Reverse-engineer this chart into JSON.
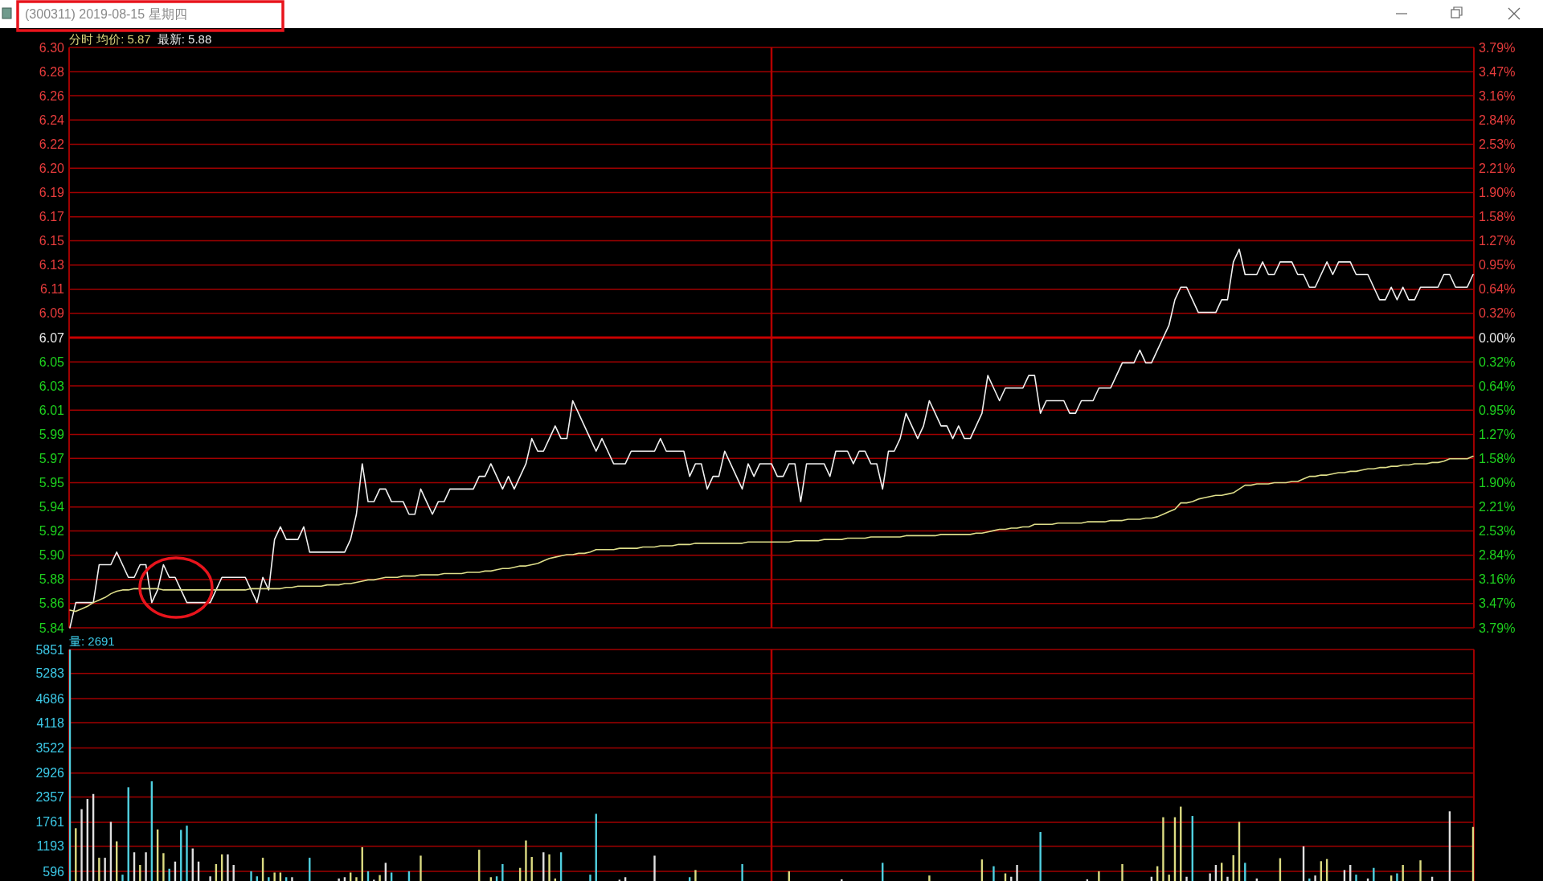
{
  "chart_data": [
    {
      "type": "line",
      "title": "(300311) 2019-08-15 星期四",
      "categories": [
        null,
        null,
        null,
        null,
        null,
        null,
        null,
        null,
        null,
        null,
        null,
        null,
        null,
        null,
        null,
        null,
        null,
        null,
        null,
        null,
        null,
        null,
        null,
        null,
        null,
        null,
        null,
        null,
        null,
        null,
        null,
        null,
        null,
        null,
        null,
        null,
        null,
        null,
        null,
        null,
        null,
        null,
        null,
        null,
        null,
        null,
        null,
        null,
        null,
        null,
        null,
        null,
        null,
        null,
        null,
        null,
        null,
        null,
        null,
        null,
        null,
        null,
        null,
        null,
        null,
        null,
        null,
        null,
        null,
        null,
        null,
        null,
        null,
        null,
        null,
        null,
        null,
        null,
        null,
        null,
        null,
        null,
        null,
        null,
        null,
        null,
        null,
        null,
        null,
        null,
        null,
        null,
        null,
        null,
        null,
        null,
        null,
        null,
        null,
        null,
        null,
        null,
        null,
        null,
        null,
        null,
        null,
        null,
        null,
        null,
        null,
        null,
        null,
        null,
        null,
        null,
        null,
        null,
        null,
        null,
        null,
        null,
        null,
        null,
        null,
        null,
        null,
        null,
        null,
        null,
        null,
        null,
        null,
        null,
        null,
        null,
        null,
        null,
        null,
        null,
        null,
        null,
        null,
        null,
        null,
        null,
        null,
        null,
        null,
        null,
        null,
        null,
        null,
        null,
        null,
        null,
        null,
        null,
        null,
        null,
        null,
        null,
        null,
        null,
        null,
        null,
        null,
        null,
        null,
        null,
        null,
        null,
        null,
        null,
        null,
        null,
        null,
        null,
        null,
        null,
        null,
        null,
        null,
        null,
        null,
        null,
        null,
        null,
        null,
        null,
        null,
        null,
        null,
        null,
        null,
        null,
        null,
        null,
        null,
        null,
        null,
        null,
        null,
        null,
        null,
        null,
        null,
        null,
        null,
        null,
        null,
        null,
        null,
        null,
        null,
        null,
        null,
        null,
        null,
        null,
        null,
        null,
        null,
        null,
        null,
        null,
        null,
        null,
        null,
        null,
        null,
        null,
        null,
        null,
        null,
        null,
        null,
        null,
        null,
        null,
        null
      ],
      "series": [
        {
          "color": "#f0f0f0",
          "values": [
            5.84,
            5.86,
            5.86,
            5.86,
            5.86,
            5.89,
            5.89,
            5.89,
            5.9,
            5.89,
            5.88,
            5.88,
            5.89,
            5.89,
            5.86,
            5.87,
            5.89,
            5.88,
            5.88,
            5.87,
            5.86,
            5.86,
            5.86,
            5.86,
            5.86,
            5.87,
            5.88,
            5.88,
            5.88,
            5.88,
            5.88,
            5.87,
            5.86,
            5.88,
            5.87,
            5.91,
            5.92,
            5.91,
            5.91,
            5.91,
            5.92,
            5.9,
            5.9,
            5.9,
            5.9,
            5.9,
            5.9,
            5.9,
            5.91,
            5.93,
            5.97,
            5.94,
            5.94,
            5.95,
            5.95,
            5.94,
            5.94,
            5.94,
            5.93,
            5.93,
            5.95,
            5.94,
            5.93,
            5.94,
            5.94,
            5.95,
            5.95,
            5.95,
            5.95,
            5.95,
            5.96,
            5.96,
            5.97,
            5.96,
            5.95,
            5.96,
            5.95,
            5.96,
            5.97,
            5.99,
            5.98,
            5.98,
            5.99,
            6.0,
            5.99,
            5.99,
            6.02,
            6.01,
            6.0,
            5.99,
            5.98,
            5.99,
            5.98,
            5.97,
            5.97,
            5.97,
            5.98,
            5.98,
            5.98,
            5.98,
            5.98,
            5.99,
            5.98,
            5.98,
            5.98,
            5.98,
            5.96,
            5.97,
            5.97,
            5.95,
            5.96,
            5.96,
            5.98,
            5.97,
            5.96,
            5.95,
            5.97,
            5.96,
            5.97,
            5.97,
            5.97,
            5.96,
            5.96,
            5.97,
            5.97,
            5.94,
            5.97,
            5.97,
            5.97,
            5.97,
            5.96,
            5.98,
            5.98,
            5.98,
            5.97,
            5.98,
            5.98,
            5.97,
            5.97,
            5.95,
            5.98,
            5.98,
            5.99,
            6.01,
            6.0,
            5.99,
            6.0,
            6.02,
            6.01,
            6.0,
            6.0,
            5.99,
            6.0,
            5.99,
            5.99,
            6.0,
            6.01,
            6.04,
            6.03,
            6.02,
            6.03,
            6.03,
            6.03,
            6.03,
            6.04,
            6.04,
            6.01,
            6.02,
            6.02,
            6.02,
            6.02,
            6.01,
            6.01,
            6.02,
            6.02,
            6.02,
            6.03,
            6.03,
            6.03,
            6.04,
            6.05,
            6.05,
            6.05,
            6.06,
            6.05,
            6.05,
            6.06,
            6.07,
            6.08,
            6.1,
            6.11,
            6.11,
            6.1,
            6.09,
            6.09,
            6.09,
            6.09,
            6.1,
            6.1,
            6.13,
            6.14,
            6.12,
            6.12,
            6.12,
            6.13,
            6.12,
            6.12,
            6.13,
            6.13,
            6.13,
            6.12,
            6.12,
            6.11,
            6.11,
            6.12,
            6.13,
            6.12,
            6.13,
            6.13,
            6.13,
            6.12,
            6.12,
            6.12,
            6.11,
            6.1,
            6.1,
            6.11,
            6.1,
            6.11,
            6.1,
            6.1,
            6.11,
            6.11,
            6.11,
            6.11,
            6.12,
            6.12,
            6.11,
            6.11,
            6.11,
            6.12
          ]
        },
        {
          "color": "#dede8a",
          "values": [
            5.854,
            5.853,
            5.855,
            5.857,
            5.86,
            5.862,
            5.864,
            5.867,
            5.869,
            5.87,
            5.87,
            5.871,
            5.871,
            5.871,
            5.871,
            5.871,
            5.87,
            5.87,
            5.87,
            5.87,
            5.87,
            5.87,
            5.87,
            5.87,
            5.87,
            5.87,
            5.87,
            5.87,
            5.87,
            5.87,
            5.87,
            5.871,
            5.871,
            5.871,
            5.871,
            5.871,
            5.871,
            5.872,
            5.872,
            5.873,
            5.873,
            5.873,
            5.873,
            5.873,
            5.874,
            5.874,
            5.874,
            5.875,
            5.875,
            5.876,
            5.877,
            5.878,
            5.878,
            5.879,
            5.88,
            5.88,
            5.88,
            5.881,
            5.881,
            5.881,
            5.882,
            5.882,
            5.882,
            5.882,
            5.883,
            5.883,
            5.883,
            5.883,
            5.884,
            5.884,
            5.884,
            5.885,
            5.885,
            5.886,
            5.887,
            5.887,
            5.888,
            5.889,
            5.889,
            5.89,
            5.891,
            5.893,
            5.895,
            5.896,
            5.897,
            5.898,
            5.898,
            5.899,
            5.899,
            5.9,
            5.902,
            5.902,
            5.902,
            5.902,
            5.903,
            5.903,
            5.903,
            5.903,
            5.904,
            5.904,
            5.904,
            5.905,
            5.905,
            5.905,
            5.906,
            5.906,
            5.906,
            5.907,
            5.907,
            5.907,
            5.907,
            5.907,
            5.907,
            5.907,
            5.907,
            5.907,
            5.908,
            5.908,
            5.908,
            5.908,
            5.908,
            5.908,
            5.908,
            5.908,
            5.909,
            5.909,
            5.909,
            5.909,
            5.909,
            5.91,
            5.91,
            5.91,
            5.91,
            5.911,
            5.911,
            5.911,
            5.911,
            5.912,
            5.912,
            5.912,
            5.912,
            5.912,
            5.912,
            5.913,
            5.913,
            5.913,
            5.913,
            5.913,
            5.913,
            5.914,
            5.914,
            5.914,
            5.914,
            5.914,
            5.914,
            5.915,
            5.915,
            5.916,
            5.917,
            5.918,
            5.918,
            5.919,
            5.919,
            5.92,
            5.92,
            5.922,
            5.922,
            5.922,
            5.922,
            5.923,
            5.923,
            5.923,
            5.923,
            5.923,
            5.924,
            5.924,
            5.924,
            5.924,
            5.925,
            5.925,
            5.925,
            5.926,
            5.926,
            5.926,
            5.927,
            5.927,
            5.928,
            5.93,
            5.932,
            5.934,
            5.939,
            5.939,
            5.94,
            5.942,
            5.943,
            5.944,
            5.945,
            5.945,
            5.946,
            5.947,
            5.95,
            5.953,
            5.953,
            5.954,
            5.954,
            5.954,
            5.955,
            5.955,
            5.955,
            5.956,
            5.956,
            5.958,
            5.96,
            5.96,
            5.961,
            5.961,
            5.962,
            5.963,
            5.963,
            5.964,
            5.964,
            5.965,
            5.966,
            5.966,
            5.967,
            5.967,
            5.968,
            5.968,
            5.969,
            5.969,
            5.97,
            5.97,
            5.97,
            5.971,
            5.971,
            5.972,
            5.974,
            5.974,
            5.974,
            5.974,
            5.976
          ]
        }
      ],
      "ylim": [
        5.84,
        6.3
      ],
      "yticks": [
        5.84,
        {
          "value": 5.8592,
          "label": "5.86"
        },
        {
          "value": 5.8783,
          "label": "5.88"
        },
        {
          "value": 5.8975,
          "label": "5.90"
        },
        {
          "value": 5.9167,
          "label": "5.92"
        },
        {
          "value": 5.9358,
          "label": "5.94"
        },
        {
          "value": 5.955,
          "label": "5.95"
        },
        {
          "value": 5.9742,
          "label": "5.97"
        },
        {
          "value": 5.9933,
          "label": "5.99"
        },
        {
          "value": 6.0125,
          "label": "6.01"
        },
        {
          "value": 6.0317,
          "label": "6.03"
        },
        {
          "value": 6.0508,
          "label": "6.05"
        },
        6.07,
        {
          "value": 6.0892,
          "label": "6.09"
        },
        {
          "value": 6.1083,
          "label": "6.11"
        },
        {
          "value": 6.1275,
          "label": "6.13"
        },
        {
          "value": 6.1467,
          "label": "6.15"
        },
        {
          "value": 6.1658,
          "label": "6.17"
        },
        {
          "value": 6.185,
          "label": "6.19"
        },
        {
          "value": 6.2042,
          "label": "6.20"
        },
        {
          "value": 6.2233,
          "label": "6.22"
        },
        {
          "value": 6.2425,
          "label": "6.24"
        },
        {
          "value": 6.2617,
          "label": "6.26"
        },
        {
          "value": 6.2808,
          "label": "6.28"
        },
        {
          "value": 6.3,
          "label": "6.30"
        }
      ],
      "y2lim": [
        -3.79,
        3.79
      ],
      "y2ticks": [
        {
          "value": -3.79,
          "label": "3.79%"
        },
        {
          "value": -3.47,
          "label": "3.47%"
        },
        {
          "value": -3.16,
          "label": "3.16%"
        },
        {
          "value": -2.84,
          "label": "2.84%"
        },
        {
          "value": -2.53,
          "label": "2.53%"
        },
        {
          "value": -2.21,
          "label": "2.21%"
        },
        {
          "value": -1.9,
          "label": "1.90%"
        },
        {
          "value": -1.58,
          "label": "1.58%"
        },
        {
          "value": -1.27,
          "label": "1.27%"
        },
        {
          "value": -0.95,
          "label": "0.95%"
        },
        {
          "value": -0.64,
          "label": "0.64%"
        },
        {
          "value": -0.32,
          "label": "0.32%"
        },
        {
          "value": 0,
          "label": "0.00%"
        },
        {
          "value": 0.32,
          "label": "0.32%"
        },
        {
          "value": 0.64,
          "label": "0.64%"
        },
        {
          "value": 0.95,
          "label": "0.95%"
        },
        {
          "value": 1.27,
          "label": "1.27%"
        },
        {
          "value": 1.58,
          "label": "1.58%"
        },
        {
          "value": 1.9,
          "label": "1.90%"
        },
        {
          "value": 2.21,
          "label": "2.21%"
        },
        {
          "value": 2.53,
          "label": "2.53%"
        },
        {
          "value": 2.84,
          "label": "2.84%"
        },
        {
          "value": 3.16,
          "label": "3.16%"
        },
        {
          "value": 3.47,
          "label": "3.47%"
        },
        {
          "value": 3.79,
          "label": "3.79%"
        }
      ],
      "ref_lines": [
        {
          "axis": "y",
          "value": 6.07,
          "color": "#c80000"
        }
      ],
      "grid": "y",
      "annotations": [
        "分时 均价: 5.87",
        "最新: 5.88"
      ]
    },
    {
      "type": "bar",
      "categories": [
        null,
        null,
        null,
        null,
        null,
        null,
        null,
        null,
        null,
        null,
        null,
        null,
        null,
        null,
        null,
        null,
        null,
        null,
        null,
        null,
        null,
        null,
        null,
        null,
        null,
        null,
        null,
        null,
        null,
        null,
        null,
        null,
        null,
        null,
        null,
        null,
        null,
        null,
        null,
        null,
        null,
        null,
        null,
        null,
        null,
        null,
        null,
        null,
        null,
        null,
        null,
        null,
        null,
        null,
        null,
        null,
        null,
        null,
        null,
        null,
        null,
        null,
        null,
        null,
        null,
        null,
        null,
        null,
        null,
        null,
        null,
        null,
        null,
        null,
        null,
        null,
        null,
        null,
        null,
        null,
        null,
        null,
        null,
        null,
        null,
        null,
        null,
        null,
        null,
        null,
        null,
        null,
        null,
        null,
        null,
        null,
        null,
        null,
        null,
        null,
        null,
        null,
        null,
        null,
        null,
        null,
        null,
        null,
        null,
        null,
        null,
        null,
        null,
        null,
        null,
        null,
        null,
        null,
        null,
        null,
        null,
        null,
        null,
        null,
        null,
        null,
        null,
        null,
        null,
        null,
        null,
        null,
        null,
        null,
        null,
        null,
        null,
        null,
        null,
        null,
        null,
        null,
        null,
        null,
        null,
        null,
        null,
        null,
        null,
        null,
        null,
        null,
        null,
        null,
        null,
        null,
        null,
        null,
        null,
        null,
        null,
        null,
        null,
        null,
        null,
        null,
        null,
        null,
        null,
        null,
        null,
        null,
        null,
        null,
        null,
        null,
        null,
        null,
        null,
        null,
        null,
        null,
        null,
        null,
        null,
        null,
        null,
        null,
        null,
        null,
        null,
        null,
        null,
        null,
        null,
        null,
        null,
        null,
        null,
        null,
        null,
        null,
        null,
        null,
        null,
        null,
        null,
        null,
        null,
        null,
        null,
        null,
        null,
        null,
        null,
        null,
        null,
        null,
        null,
        null,
        null,
        null,
        null,
        null,
        null,
        null,
        null,
        null,
        null,
        null,
        null,
        null,
        null,
        null,
        null,
        null,
        null,
        null,
        null,
        null,
        null
      ],
      "values": [
        5850,
        1620,
        2070,
        2310,
        2430,
        920,
        920,
        1770,
        1310,
        520,
        2590,
        1050,
        750,
        1050,
        2730,
        1590,
        1030,
        660,
        830,
        1580,
        1680,
        1140,
        830,
        null,
        480,
        770,
        1000,
        1000,
        750,
        null,
        null,
        600,
        480,
        920,
        460,
        570,
        570,
        460,
        460,
        null,
        null,
        920,
        null,
        null,
        null,
        null,
        430,
        460,
        570,
        460,
        1170,
        600,
        400,
        510,
        800,
        570,
        null,
        null,
        600,
        null,
        970,
        null,
        null,
        null,
        null,
        null,
        null,
        null,
        null,
        null,
        1110,
        null,
        460,
        480,
        770,
        null,
        null,
        680,
        1330,
        940,
        null,
        1050,
        1000,
        430,
        1050,
        null,
        null,
        null,
        null,
        520,
        1960,
        null,
        null,
        null,
        400,
        460,
        null,
        null,
        null,
        null,
        970,
        null,
        null,
        null,
        null,
        null,
        460,
        630,
        null,
        null,
        null,
        null,
        null,
        null,
        null,
        770,
        null,
        null,
        null,
        null,
        null,
        null,
        null,
        600,
        null,
        null,
        null,
        null,
        null,
        null,
        null,
        null,
        410,
        null,
        null,
        null,
        null,
        null,
        null,
        800,
        null,
        null,
        null,
        null,
        null,
        null,
        null,
        500,
        null,
        null,
        null,
        null,
        null,
        null,
        null,
        null,
        880,
        null,
        720,
        null,
        550,
        470,
        750,
        null,
        null,
        null,
        1530,
        null,
        null,
        null,
        null,
        null,
        null,
        null,
        410,
        null,
        600,
        null,
        null,
        null,
        770,
        null,
        null,
        null,
        null,
        470,
        720,
        1880,
        520,
        1880,
        2130,
        470,
        1910,
        null,
        null,
        550,
        750,
        800,
        470,
        980,
        1770,
        800,
        null,
        430,
        null,
        null,
        null,
        910,
        null,
        null,
        null,
        1190,
        430,
        500,
        840,
        890,
        null,
        null,
        630,
        750,
        520,
        null,
        430,
        680,
        null,
        null,
        500,
        550,
        750,
        null,
        null,
        860,
        null,
        470,
        null,
        null,
        2020,
        null,
        null,
        null,
        1650
      ],
      "colors": [
        "#50d0e0",
        "#dcdc82",
        "#e0e0e0",
        "#e0e0e0",
        "#e0e0e0",
        "#dcdc82",
        "#e0e0e0",
        "#e0e0e0",
        "#dcdc82",
        "#50d0e0",
        "#50d0e0",
        "#e0e0e0",
        "#dcdc82",
        "#e0e0e0",
        "#50d0e0",
        "#dcdc82",
        "#dcdc82",
        "#50d0e0",
        "#e0e0e0",
        "#50d0e0",
        "#50d0e0",
        "#e0e0e0",
        "#e0e0e0",
        null,
        "#e0e0e0",
        "#dcdc82",
        "#dcdc82",
        "#e0e0e0",
        "#e0e0e0",
        null,
        null,
        "#50d0e0",
        "#50d0e0",
        "#dcdc82",
        "#50d0e0",
        "#dcdc82",
        "#dcdc82",
        "#50d0e0",
        "#e0e0e0",
        null,
        null,
        "#50d0e0",
        null,
        null,
        null,
        null,
        "#e0e0e0",
        "#e0e0e0",
        "#dcdc82",
        "#dcdc82",
        "#dcdc82",
        "#50d0e0",
        "#e0e0e0",
        "#dcdc82",
        "#e0e0e0",
        "#50d0e0",
        null,
        null,
        "#50d0e0",
        null,
        "#dcdc82",
        null,
        null,
        null,
        null,
        null,
        null,
        null,
        null,
        null,
        "#dcdc82",
        null,
        "#dcdc82",
        "#50d0e0",
        "#50d0e0",
        null,
        null,
        "#dcdc82",
        "#dcdc82",
        "#dcdc82",
        null,
        "#e0e0e0",
        "#dcdc82",
        "#dcdc82",
        "#50d0e0",
        null,
        null,
        null,
        null,
        "#50d0e0",
        "#50d0e0",
        null,
        null,
        null,
        "#e0e0e0",
        "#e0e0e0",
        null,
        null,
        null,
        null,
        "#e0e0e0",
        null,
        null,
        null,
        null,
        null,
        "#50d0e0",
        "#dcdc82",
        null,
        null,
        null,
        null,
        null,
        null,
        null,
        "#50d0e0",
        null,
        null,
        null,
        null,
        null,
        null,
        null,
        "#dcdc82",
        null,
        null,
        null,
        null,
        null,
        null,
        null,
        null,
        "#e0e0e0",
        null,
        null,
        null,
        null,
        null,
        null,
        "#50d0e0",
        null,
        null,
        null,
        null,
        null,
        null,
        null,
        "#dcdc82",
        null,
        null,
        null,
        null,
        null,
        null,
        null,
        null,
        "#dcdc82",
        null,
        "#50d0e0",
        null,
        "#dcdc82",
        "#e0e0e0",
        "#e0e0e0",
        null,
        null,
        null,
        "#50d0e0",
        null,
        null,
        null,
        null,
        null,
        null,
        null,
        "#e0e0e0",
        null,
        "#dcdc82",
        null,
        null,
        null,
        "#dcdc82",
        null,
        null,
        null,
        null,
        "#e0e0e0",
        "#dcdc82",
        "#dcdc82",
        "#dcdc82",
        "#dcdc82",
        "#dcdc82",
        "#e0e0e0",
        "#50d0e0",
        null,
        null,
        "#e0e0e0",
        "#e0e0e0",
        "#dcdc82",
        "#e0e0e0",
        "#dcdc82",
        "#dcdc82",
        "#50d0e0",
        null,
        "#e0e0e0",
        null,
        null,
        null,
        "#dcdc82",
        null,
        null,
        null,
        "#e0e0e0",
        "#50d0e0",
        "#e0e0e0",
        "#dcdc82",
        "#dcdc82",
        null,
        null,
        "#e0e0e0",
        "#e0e0e0",
        "#50d0e0",
        null,
        "#e0e0e0",
        "#50d0e0",
        null,
        null,
        "#dcdc82",
        "#50d0e0",
        "#dcdc82",
        null,
        null,
        "#dcdc82",
        null,
        "#e0e0e0",
        null,
        null,
        "#e0e0e0",
        null,
        null,
        null,
        "#dcdc82"
      ],
      "ylim": [
        370,
        5851
      ],
      "yticks": [
        596,
        1193,
        1761,
        2357,
        2926,
        3522,
        4118,
        4686,
        5283,
        5851
      ],
      "grid": "y",
      "annotations": [
        "量: 2691"
      ]
    }
  ]
}
